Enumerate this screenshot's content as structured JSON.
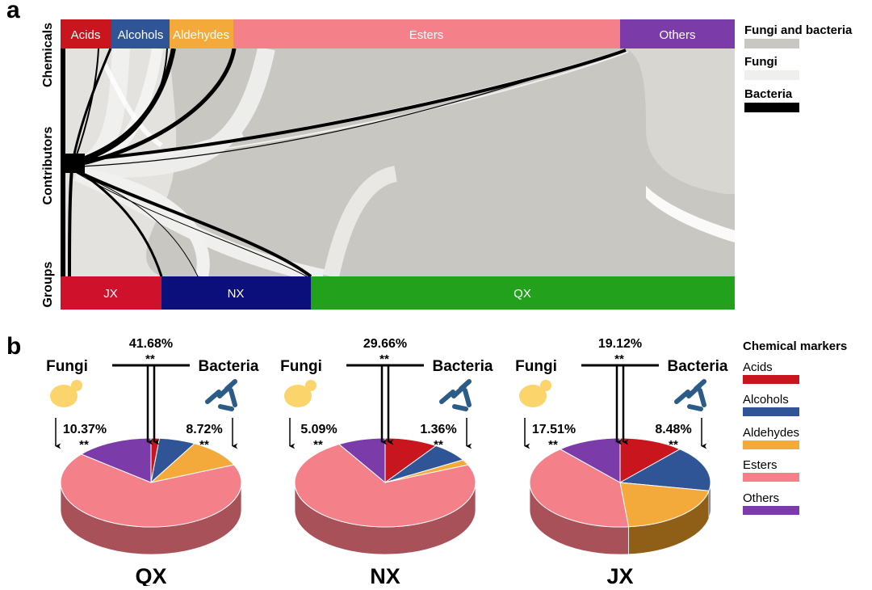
{
  "panel_a": {
    "letter": "a",
    "row_labels": {
      "chemicals": "Chemicals",
      "contributors": "Contributors",
      "groups": "Groups"
    },
    "chemicals": [
      {
        "label": "Acids",
        "color": "#c8151e"
      },
      {
        "label": "Alcohols",
        "color": "#2f5597"
      },
      {
        "label": "Aldehydes",
        "color": "#f4a93b"
      },
      {
        "label": "Esters",
        "color": "#f4808a"
      },
      {
        "label": "Others",
        "color": "#7b3ba8"
      }
    ],
    "groups": [
      {
        "label": "JX",
        "color": "#d0112b"
      },
      {
        "label": "NX",
        "color": "#0b0f7c"
      },
      {
        "label": "QX",
        "color": "#21a11c"
      }
    ],
    "legend": [
      {
        "label": "Fungi and bacteria",
        "color": "#c9c7c2"
      },
      {
        "label": "Fungi",
        "color": "#efefed"
      },
      {
        "label": "Bacteria",
        "color": "#000000"
      }
    ]
  },
  "panel_b": {
    "letter": "b",
    "fungi_label": "Fungi",
    "bacteria_label": "Bacteria",
    "groups": [
      {
        "name": "QX",
        "combined": "41.68%",
        "fungi": "10.37%",
        "bacteria": "8.72%",
        "sig": "**",
        "slices": [
          {
            "label": "Acids",
            "pct": 1.5
          },
          {
            "label": "Alcohols",
            "pct": 6.5
          },
          {
            "label": "Aldehydes",
            "pct": 10.5
          },
          {
            "label": "Esters",
            "pct": 67.5
          },
          {
            "label": "Others",
            "pct": 14.0
          }
        ]
      },
      {
        "name": "NX",
        "combined": "29.66%",
        "fungi": "5.09%",
        "bacteria": "1.36%",
        "sig": "**",
        "slices": [
          {
            "label": "Acids",
            "pct": 9.5
          },
          {
            "label": "Alcohols",
            "pct": 7.0
          },
          {
            "label": "Aldehydes",
            "pct": 2.0
          },
          {
            "label": "Esters",
            "pct": 73.0
          },
          {
            "label": "Others",
            "pct": 8.5
          }
        ]
      },
      {
        "name": "JX",
        "combined": "19.12%",
        "fungi": "17.51%",
        "bacteria": "8.48%",
        "sig": "**",
        "slices": [
          {
            "label": "Acids",
            "pct": 11.5
          },
          {
            "label": "Alcohols",
            "pct": 16.5
          },
          {
            "label": "Aldehydes",
            "pct": 20.5
          },
          {
            "label": "Esters",
            "pct": 40.0
          },
          {
            "label": "Others",
            "pct": 11.5
          }
        ]
      }
    ],
    "legend_title": "Chemical markers",
    "legend": [
      {
        "label": "Acids",
        "color": "#c8151e"
      },
      {
        "label": "Alcohols",
        "color": "#2f5597"
      },
      {
        "label": "Aldehydes",
        "color": "#f4a93b"
      },
      {
        "label": "Esters",
        "color": "#f4808a"
      },
      {
        "label": "Others",
        "color": "#7b3ba8"
      }
    ]
  }
}
